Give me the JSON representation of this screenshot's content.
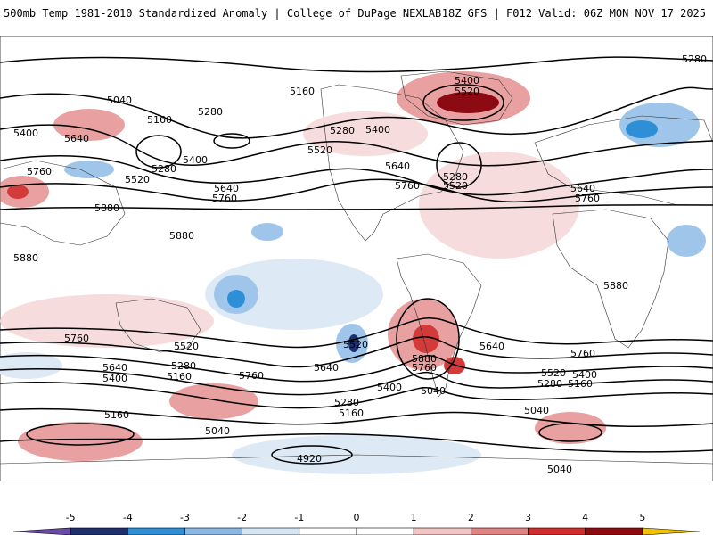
{
  "header": {
    "left_title": "500mb Temp 1981-2010 Standardized Anomaly | College of DuPage NEXLAB",
    "right_title": "18Z GFS | F012 Valid: 06Z MON NOV 17 2025"
  },
  "map": {
    "contour_labels": [
      "5280",
      "5040",
      "5160",
      "5400",
      "5640",
      "5760",
      "5520",
      "5880",
      "4920"
    ],
    "colors": {
      "neg_strong": "#1e2f6e",
      "neg_mid": "#2f8fd6",
      "neg_light": "#9fc6ea",
      "neg_faint": "#dde9f5",
      "pos_faint": "#f6dcdc",
      "pos_light": "#e8a0a0",
      "pos_mid": "#d33b3b",
      "pos_strong": "#8c0a12"
    }
  },
  "colorbar": {
    "ticks": [
      "-5",
      "-4",
      "-3",
      "-2",
      "-1",
      "0",
      "1",
      "2",
      "3",
      "4",
      "5"
    ],
    "colors": [
      "#6b4aa8",
      "#1f2e6c",
      "#2f8fd6",
      "#8ab8e3",
      "#d5e5f4",
      "#ffffff",
      "#ffffff",
      "#f2c4c4",
      "#e08484",
      "#d22d2d",
      "#8f0b12",
      "#f2c200"
    ]
  }
}
